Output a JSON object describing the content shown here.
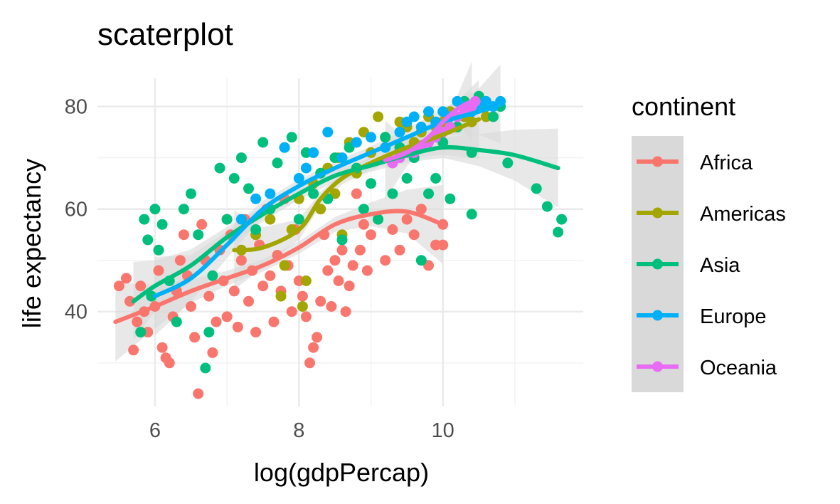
{
  "chart_data": {
    "type": "scatter",
    "title": "scaterplot",
    "xlabel": "log(gdpPercap)",
    "ylabel": "life expectancy",
    "xlim": [
      5.2,
      11.95
    ],
    "ylim": [
      21.5,
      85.5
    ],
    "x_ticks": [
      6,
      8,
      10
    ],
    "y_ticks": [
      40,
      60,
      80
    ],
    "x_minor_ticks": [
      7,
      9,
      11
    ],
    "y_minor_ticks": [
      30,
      50,
      70
    ],
    "grid": true,
    "legend": {
      "title": "continent",
      "placement": "right"
    },
    "smooth": {
      "method": "loess",
      "confidence_band": true,
      "band_color": "#d9d9d9"
    },
    "series": [
      {
        "name": "Africa",
        "color": "#F8766D",
        "points": [
          [
            5.5,
            45
          ],
          [
            5.6,
            46.5
          ],
          [
            5.65,
            42
          ],
          [
            5.7,
            32.5
          ],
          [
            5.75,
            38
          ],
          [
            5.8,
            45
          ],
          [
            5.85,
            40
          ],
          [
            5.9,
            36
          ],
          [
            5.95,
            43
          ],
          [
            6.0,
            41
          ],
          [
            6.05,
            48
          ],
          [
            6.1,
            33
          ],
          [
            6.15,
            31
          ],
          [
            6.2,
            30
          ],
          [
            6.25,
            39
          ],
          [
            6.3,
            44
          ],
          [
            6.35,
            50
          ],
          [
            6.4,
            55
          ],
          [
            6.45,
            47
          ],
          [
            6.5,
            41
          ],
          [
            6.55,
            35
          ],
          [
            6.6,
            24
          ],
          [
            6.65,
            57
          ],
          [
            6.7,
            50
          ],
          [
            6.75,
            43
          ],
          [
            6.8,
            32
          ],
          [
            6.85,
            38
          ],
          [
            6.9,
            52
          ],
          [
            6.95,
            46
          ],
          [
            7.0,
            39
          ],
          [
            7.05,
            55
          ],
          [
            7.1,
            44
          ],
          [
            7.15,
            37
          ],
          [
            7.2,
            50
          ],
          [
            7.25,
            58
          ],
          [
            7.3,
            42
          ],
          [
            7.35,
            48
          ],
          [
            7.4,
            36
          ],
          [
            7.45,
            53
          ],
          [
            7.5,
            45
          ],
          [
            7.55,
            60
          ],
          [
            7.6,
            47
          ],
          [
            7.65,
            38
          ],
          [
            7.7,
            51
          ],
          [
            7.75,
            44
          ],
          [
            7.8,
            62
          ],
          [
            7.85,
            49
          ],
          [
            7.9,
            40
          ],
          [
            7.95,
            56
          ],
          [
            8.0,
            46
          ],
          [
            8.05,
            43
          ],
          [
            8.1,
            39
          ],
          [
            8.15,
            30
          ],
          [
            8.2,
            33
          ],
          [
            8.25,
            35
          ],
          [
            8.3,
            42
          ],
          [
            8.35,
            55
          ],
          [
            8.4,
            48
          ],
          [
            8.45,
            41
          ],
          [
            8.5,
            50
          ],
          [
            8.55,
            46
          ],
          [
            8.6,
            52
          ],
          [
            8.65,
            40
          ],
          [
            8.7,
            45
          ],
          [
            8.75,
            49
          ],
          [
            8.8,
            63
          ],
          [
            8.85,
            52
          ],
          [
            8.9,
            57
          ],
          [
            8.95,
            48
          ],
          [
            9.0,
            55
          ],
          [
            9.1,
            58
          ],
          [
            9.2,
            50
          ],
          [
            9.3,
            56
          ],
          [
            9.4,
            52
          ],
          [
            9.5,
            58
          ],
          [
            9.6,
            55
          ],
          [
            9.7,
            60
          ],
          [
            9.8,
            49
          ],
          [
            9.9,
            53
          ],
          [
            10.0,
            57
          ],
          [
            10.0,
            53
          ]
        ],
        "trend": [
          [
            5.45,
            38
          ],
          [
            6.0,
            41
          ],
          [
            6.5,
            44
          ],
          [
            7.0,
            46.5
          ],
          [
            7.5,
            49
          ],
          [
            8.0,
            52.5
          ],
          [
            8.5,
            57
          ],
          [
            9.0,
            59
          ],
          [
            9.5,
            59.5
          ],
          [
            10.0,
            57
          ]
        ]
      },
      {
        "name": "Americas",
        "color": "#A3A500",
        "points": [
          [
            7.0,
            58
          ],
          [
            7.2,
            52
          ],
          [
            7.4,
            55
          ],
          [
            7.6,
            58
          ],
          [
            7.75,
            43
          ],
          [
            7.8,
            49
          ],
          [
            7.9,
            56
          ],
          [
            8.0,
            62
          ],
          [
            8.05,
            41
          ],
          [
            8.1,
            46
          ],
          [
            8.2,
            65
          ],
          [
            8.3,
            60
          ],
          [
            8.4,
            68
          ],
          [
            8.5,
            63
          ],
          [
            8.55,
            70
          ],
          [
            8.6,
            55
          ],
          [
            8.7,
            73
          ],
          [
            8.8,
            67
          ],
          [
            8.9,
            75
          ],
          [
            9.0,
            71
          ],
          [
            9.1,
            78
          ],
          [
            9.2,
            74
          ],
          [
            9.3,
            69
          ],
          [
            9.4,
            77
          ],
          [
            9.5,
            76
          ],
          [
            9.6,
            73
          ],
          [
            9.7,
            75
          ],
          [
            9.8,
            78
          ],
          [
            9.9,
            76
          ],
          [
            10.0,
            77
          ],
          [
            10.1,
            79
          ],
          [
            10.2,
            76
          ],
          [
            10.3,
            78
          ],
          [
            10.4,
            77
          ],
          [
            10.5,
            80
          ],
          [
            10.6,
            78
          ]
        ],
        "trend": [
          [
            7.1,
            52
          ],
          [
            7.5,
            52.5
          ],
          [
            8.0,
            56
          ],
          [
            8.3,
            62
          ],
          [
            8.6,
            66
          ],
          [
            9.0,
            69
          ],
          [
            9.5,
            72
          ],
          [
            10.0,
            74.5
          ],
          [
            10.5,
            77.5
          ]
        ]
      },
      {
        "name": "Asia",
        "color": "#00BF7D",
        "points": [
          [
            5.8,
            36
          ],
          [
            5.85,
            58
          ],
          [
            5.9,
            54
          ],
          [
            5.95,
            43
          ],
          [
            6.0,
            60
          ],
          [
            6.05,
            52
          ],
          [
            6.1,
            57
          ],
          [
            6.2,
            46
          ],
          [
            6.3,
            38
          ],
          [
            6.4,
            60
          ],
          [
            6.5,
            63
          ],
          [
            6.6,
            55
          ],
          [
            6.7,
            29
          ],
          [
            6.75,
            36
          ],
          [
            6.8,
            47
          ],
          [
            6.9,
            68
          ],
          [
            7.0,
            58
          ],
          [
            7.1,
            66
          ],
          [
            7.2,
            70
          ],
          [
            7.3,
            64
          ],
          [
            7.4,
            56
          ],
          [
            7.5,
            73
          ],
          [
            7.6,
            60
          ],
          [
            7.7,
            69
          ],
          [
            7.8,
            72
          ],
          [
            7.9,
            74
          ],
          [
            8.0,
            58
          ],
          [
            8.1,
            71
          ],
          [
            8.2,
            63
          ],
          [
            8.3,
            67
          ],
          [
            8.4,
            62
          ],
          [
            8.5,
            70
          ],
          [
            8.6,
            54
          ],
          [
            8.7,
            72
          ],
          [
            8.8,
            68
          ],
          [
            8.9,
            60
          ],
          [
            9.0,
            65
          ],
          [
            9.1,
            58
          ],
          [
            9.2,
            74
          ],
          [
            9.3,
            63
          ],
          [
            9.4,
            72
          ],
          [
            9.5,
            66
          ],
          [
            9.6,
            70
          ],
          [
            9.7,
            50
          ],
          [
            9.8,
            63
          ],
          [
            9.9,
            66
          ],
          [
            10.0,
            73
          ],
          [
            10.1,
            62
          ],
          [
            10.2,
            76
          ],
          [
            10.3,
            81
          ],
          [
            10.4,
            71
          ],
          [
            10.4,
            59
          ],
          [
            10.5,
            82
          ],
          [
            10.6,
            80
          ],
          [
            10.7,
            78
          ],
          [
            10.8,
            80
          ],
          [
            10.9,
            69
          ],
          [
            11.3,
            64
          ],
          [
            11.45,
            60.5
          ],
          [
            11.6,
            55.5
          ],
          [
            11.65,
            58
          ]
        ],
        "trend": [
          [
            5.7,
            42
          ],
          [
            6.0,
            45
          ],
          [
            6.5,
            49
          ],
          [
            7.0,
            54.5
          ],
          [
            7.5,
            59
          ],
          [
            8.0,
            63
          ],
          [
            8.5,
            66.5
          ],
          [
            9.0,
            68.5
          ],
          [
            9.5,
            70.5
          ],
          [
            10.0,
            72
          ],
          [
            10.5,
            71.5
          ],
          [
            11.0,
            70.5
          ],
          [
            11.6,
            68
          ]
        ]
      },
      {
        "name": "Europe",
        "color": "#00B0F6",
        "points": [
          [
            7.2,
            58
          ],
          [
            7.4,
            62
          ],
          [
            7.6,
            63
          ],
          [
            7.8,
            72
          ],
          [
            8.0,
            66
          ],
          [
            8.1,
            68
          ],
          [
            8.2,
            71
          ],
          [
            8.4,
            75
          ],
          [
            8.6,
            70
          ],
          [
            8.8,
            73
          ],
          [
            9.0,
            74
          ],
          [
            9.2,
            72
          ],
          [
            9.4,
            75
          ],
          [
            9.5,
            77
          ],
          [
            9.6,
            78
          ],
          [
            9.7,
            76
          ],
          [
            9.8,
            79
          ],
          [
            9.9,
            77
          ],
          [
            10.0,
            79
          ],
          [
            10.1,
            78
          ],
          [
            10.2,
            81
          ],
          [
            10.3,
            80
          ],
          [
            10.4,
            79
          ],
          [
            10.5,
            80
          ],
          [
            10.6,
            81
          ],
          [
            10.7,
            80
          ],
          [
            10.8,
            81
          ]
        ],
        "trend": [
          [
            6.0,
            43
          ],
          [
            6.5,
            46.5
          ],
          [
            7.0,
            53
          ],
          [
            7.5,
            60
          ],
          [
            8.0,
            64.5
          ],
          [
            8.5,
            68
          ],
          [
            9.0,
            71
          ],
          [
            9.5,
            74
          ],
          [
            10.0,
            77
          ],
          [
            10.5,
            79
          ],
          [
            10.8,
            80.5
          ]
        ]
      },
      {
        "name": "Oceania",
        "color": "#E76BF3",
        "points": [
          [
            9.3,
            69
          ],
          [
            9.4,
            70
          ],
          [
            9.5,
            71
          ],
          [
            9.6,
            71
          ],
          [
            9.7,
            72
          ],
          [
            9.8,
            73
          ],
          [
            9.9,
            74
          ],
          [
            10.0,
            75
          ],
          [
            10.1,
            76
          ],
          [
            10.2,
            78
          ],
          [
            10.3,
            79
          ],
          [
            10.4,
            80
          ],
          [
            10.45,
            81
          ]
        ],
        "trend": [
          [
            9.2,
            69.5
          ],
          [
            9.5,
            71
          ],
          [
            9.8,
            74
          ],
          [
            10.0,
            77
          ],
          [
            10.2,
            79.5
          ],
          [
            10.4,
            81
          ]
        ]
      }
    ]
  }
}
